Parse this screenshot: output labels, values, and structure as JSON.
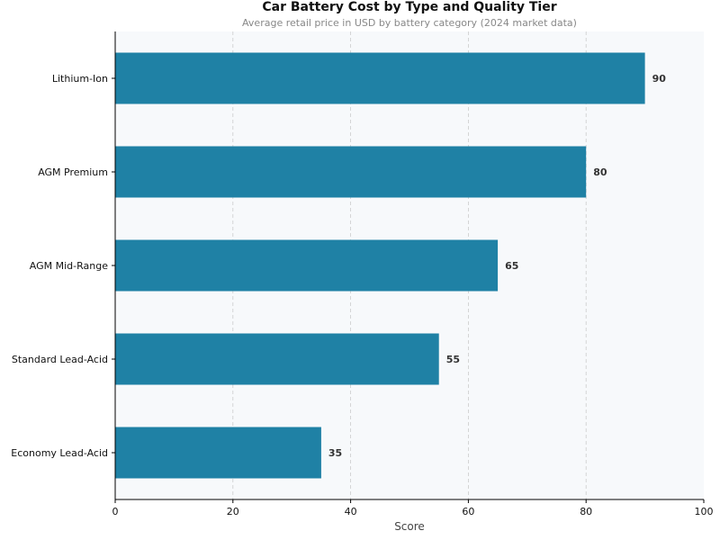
{
  "chart_data": {
    "type": "bar",
    "orientation": "horizontal",
    "title": "Car Battery Cost by Type and Quality Tier",
    "subtitle": "Average retail price in USD by battery category (2024 market data)",
    "xlabel": "Score",
    "ylabel": "",
    "categories": [
      "Lithium-Ion",
      "AGM Premium",
      "AGM Mid-Range",
      "Standard Lead-Acid",
      "Economy Lead-Acid"
    ],
    "values": [
      90,
      80,
      65,
      55,
      35
    ],
    "xlim": [
      0,
      100
    ],
    "xticks": [
      0,
      20,
      40,
      60,
      80,
      100
    ],
    "grid": "vertical dashed",
    "bar_color": "#1f81a5",
    "background": "#f7f9fb",
    "data_labels": true
  }
}
